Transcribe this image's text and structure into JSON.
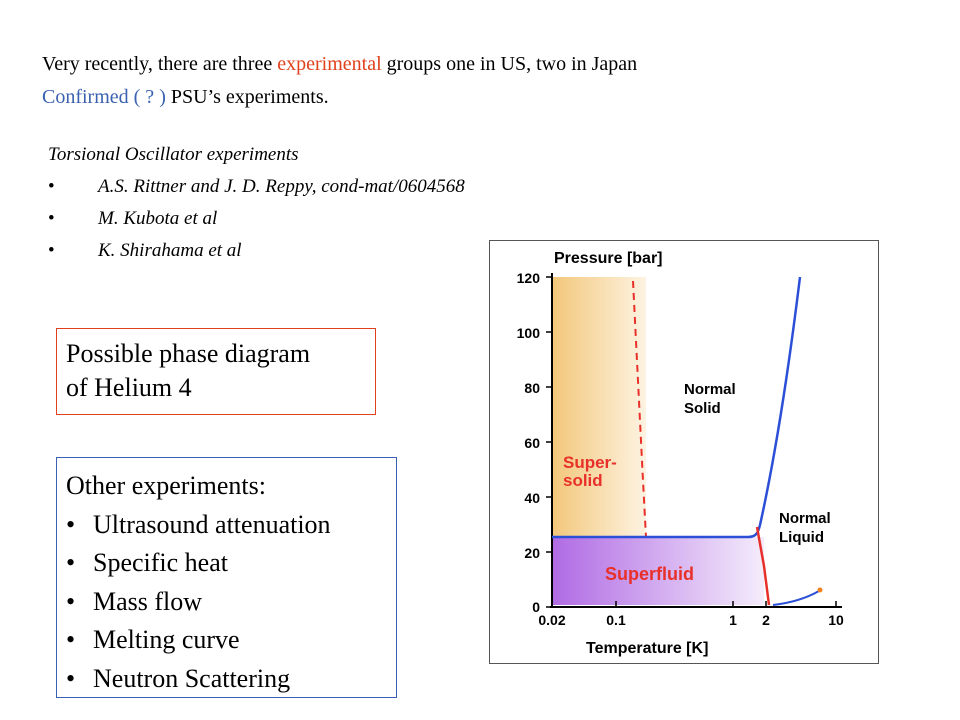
{
  "intro": {
    "line1_a": "Very recently, there are three ",
    "line1_b": "experimental",
    "line1_c": " groups one in US, two in Japan",
    "line2_a": "Confirmed ( ? )",
    "line2_b": " PSU’s experiments."
  },
  "torsional": {
    "heading": "Torsional Oscillator experiments",
    "bullet": "•",
    "items": [
      "A.S. Rittner and J. D. Reppy, cond-mat/0604568",
      "M. Kubota et al",
      "K. Shirahama et al"
    ]
  },
  "phase_box": {
    "line1": "Possible phase diagram",
    "line2": "of  Helium 4"
  },
  "other": {
    "heading": "Other experiments:",
    "bullet": "•",
    "items": [
      "Ultrasound attenuation",
      "Specific heat",
      "Mass flow",
      "Melting curve",
      "Neutron Scattering"
    ]
  },
  "diagram": {
    "ylabel": "Pressure [bar]",
    "xlabel": "Temperature [K]",
    "yticks": [
      "0",
      "20",
      "40",
      "60",
      "80",
      "100",
      "120"
    ],
    "xticks": [
      "0.02",
      "0.1",
      "1",
      "2",
      "10"
    ],
    "region_normal_solid": [
      "Normal",
      "Solid"
    ],
    "region_supersolid": [
      "Super-",
      "solid"
    ],
    "region_normal_liquid": [
      "Normal",
      "Liquid"
    ],
    "region_superfluid": "Superfluid",
    "colors": {
      "label_red": "#e8302a",
      "curve_blue": "#2b4fd6",
      "curve_red": "#e8302a",
      "supersolid_fill": "#f6d49a",
      "superfluid_fill": "#b77ae6"
    }
  }
}
